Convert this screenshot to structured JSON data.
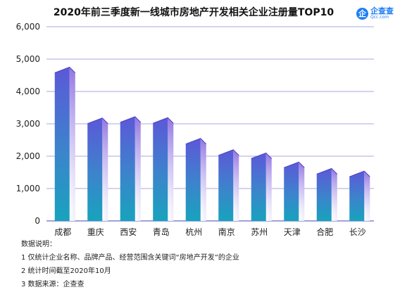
{
  "title": "2020年前三季度新一线城市房地产开发相关企业注册量TOP10",
  "logo": {
    "mark": "企",
    "name": "企查查",
    "url": "Qcc.com"
  },
  "notes": {
    "heading": "数据说明：",
    "items": [
      "1 仅统计企业名称、品牌产品、经营范围含关键词“房地产开发”的企业",
      "2 统计时间截至2020年10月",
      "3 数据来源：企查查"
    ]
  },
  "chart_data": {
    "type": "bar",
    "title": "2020年前三季度新一线城市房地产开发相关企业注册量TOP10",
    "categories": [
      "成都",
      "重庆",
      "西安",
      "青岛",
      "杭州",
      "南京",
      "苏州",
      "天津",
      "合肥",
      "长沙"
    ],
    "values": [
      4750,
      3180,
      3220,
      3190,
      2550,
      2200,
      2100,
      1820,
      1620,
      1540
    ],
    "ylim": [
      0,
      6000
    ],
    "yticks": [
      0,
      1000,
      2000,
      3000,
      4000,
      5000,
      6000
    ],
    "ytick_labels": [
      "0",
      "1,000",
      "2,000",
      "3,000",
      "4,000",
      "5,000",
      "6,000"
    ],
    "grid": true,
    "colors": {
      "bar_top": "#5a5ad8",
      "bar_bottom": "#1aa0bf",
      "grid": "#8c8cd0"
    }
  }
}
